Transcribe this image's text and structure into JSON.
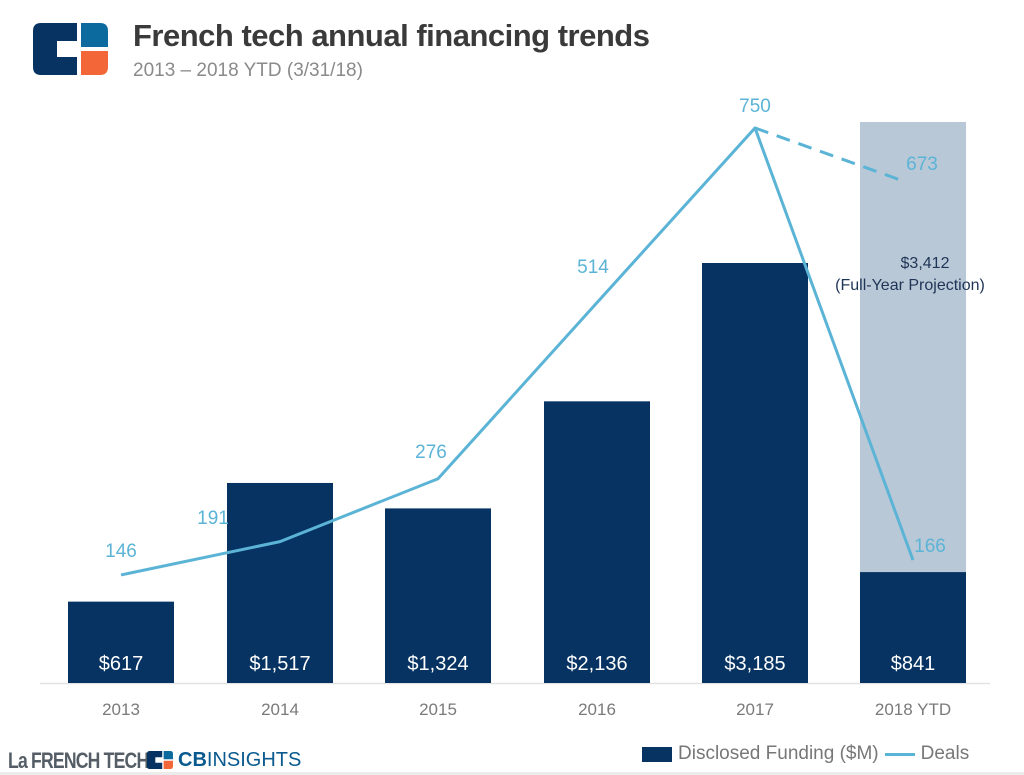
{
  "header": {
    "title": "French tech annual financing trends",
    "subtitle": "2013 – 2018 YTD (3/31/18)"
  },
  "footer": {
    "la_french_tech": "La FRENCH TECH",
    "cb_bold": "CB",
    "cb_rest": "INSIGHTS"
  },
  "colors": {
    "bar": "#063361",
    "projection": "#b9c8d6",
    "line": "#5bb4d6",
    "axis_label": "#7a7a7a"
  },
  "chart_data": {
    "type": "bar",
    "title": "French tech annual financing trends",
    "subtitle": "2013 – 2018 YTD (3/31/18)",
    "categories": [
      "2013",
      "2014",
      "2015",
      "2016",
      "2017",
      "2018 YTD"
    ],
    "series": [
      {
        "name": "Disclosed Funding ($M)",
        "type": "bar",
        "values": [
          617,
          1517,
          1324,
          2136,
          3185,
          841
        ],
        "labels": [
          "$617",
          "$1,517",
          "$1,324",
          "$2,136",
          "$3,185",
          "$841"
        ]
      },
      {
        "name": "Deals",
        "type": "line",
        "values": [
          146,
          191,
          276,
          514,
          750,
          166
        ],
        "labels": [
          "146",
          "191",
          "276",
          "514",
          "750",
          "166"
        ]
      }
    ],
    "projection": {
      "category": "2018 YTD",
      "funding_value": 3412,
      "funding_label": "$3,412",
      "funding_note": "(Full-Year Projection)",
      "deals_value": 673,
      "deals_label": "673"
    },
    "legend": {
      "position": "bottom-right",
      "items": [
        "Disclosed Funding ($M)",
        "Deals"
      ]
    },
    "xlabel": "",
    "ylabel": "",
    "grid": false
  }
}
